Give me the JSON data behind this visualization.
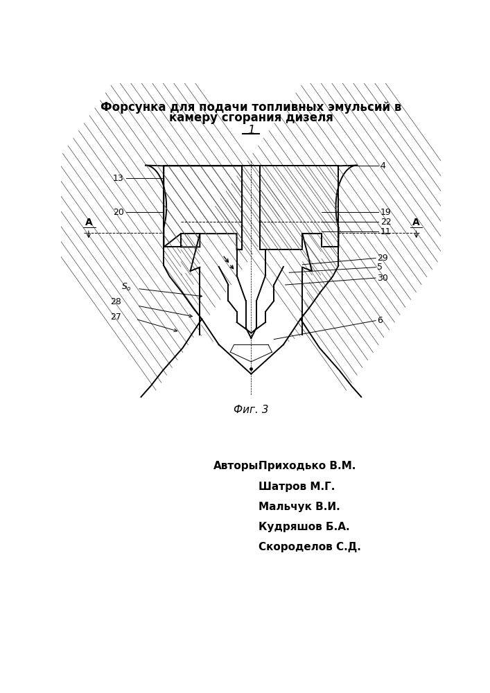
{
  "title_line1": "Форсунка для подачи топливных эмульсий в",
  "title_line2": "камеру сгорания дизеля",
  "sheet_label": "1",
  "fig_label": "Фиг. 3",
  "authors_label": "Авторы:",
  "authors": [
    "Приходько В.М.",
    "Шатров М.Г.",
    "Мальчук В.И.",
    "Кудряшов Б.А.",
    "Скороделов С.Д."
  ],
  "background_color": "#ffffff",
  "line_color": "#000000",
  "title_fontsize": 12,
  "label_fontsize": 9
}
